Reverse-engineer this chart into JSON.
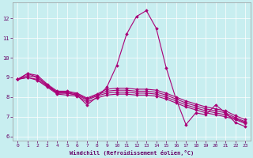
{
  "xlabel": "Windchill (Refroidissement éolien,°C)",
  "bg_color": "#c8eef0",
  "line_color": "#aa0077",
  "marker": "D",
  "markersize": 1.8,
  "linewidth": 0.8,
  "xlim": [
    -0.5,
    23.5
  ],
  "ylim": [
    5.8,
    12.8
  ],
  "yticks": [
    6,
    7,
    8,
    9,
    10,
    11,
    12
  ],
  "xticks": [
    0,
    1,
    2,
    3,
    4,
    5,
    6,
    7,
    8,
    9,
    10,
    11,
    12,
    13,
    14,
    15,
    16,
    17,
    18,
    19,
    20,
    21,
    22,
    23
  ],
  "lines": [
    [
      8.9,
      9.2,
      9.0,
      8.6,
      8.2,
      8.2,
      8.1,
      7.6,
      8.0,
      8.5,
      9.6,
      11.2,
      12.1,
      12.4,
      11.5,
      9.5,
      7.9,
      6.6,
      7.2,
      7.1,
      7.6,
      7.2,
      6.7,
      6.5
    ],
    [
      8.9,
      9.0,
      8.85,
      8.5,
      8.15,
      8.1,
      8.05,
      7.75,
      7.95,
      8.1,
      8.15,
      8.15,
      8.1,
      8.1,
      8.05,
      7.9,
      7.7,
      7.5,
      7.35,
      7.2,
      7.1,
      7.0,
      6.85,
      6.65
    ],
    [
      8.9,
      9.0,
      8.9,
      8.55,
      8.2,
      8.2,
      8.1,
      7.85,
      8.05,
      8.2,
      8.25,
      8.25,
      8.2,
      8.2,
      8.15,
      8.0,
      7.8,
      7.6,
      7.45,
      7.3,
      7.2,
      7.1,
      6.9,
      6.7
    ],
    [
      8.9,
      9.1,
      9.0,
      8.6,
      8.25,
      8.25,
      8.15,
      7.9,
      8.1,
      8.3,
      8.35,
      8.35,
      8.3,
      8.3,
      8.25,
      8.1,
      7.9,
      7.7,
      7.55,
      7.4,
      7.3,
      7.2,
      6.95,
      6.75
    ],
    [
      8.9,
      9.2,
      9.1,
      8.65,
      8.3,
      8.3,
      8.2,
      7.95,
      8.15,
      8.4,
      8.45,
      8.45,
      8.4,
      8.4,
      8.35,
      8.2,
      8.0,
      7.8,
      7.65,
      7.5,
      7.4,
      7.3,
      7.05,
      6.85
    ]
  ]
}
